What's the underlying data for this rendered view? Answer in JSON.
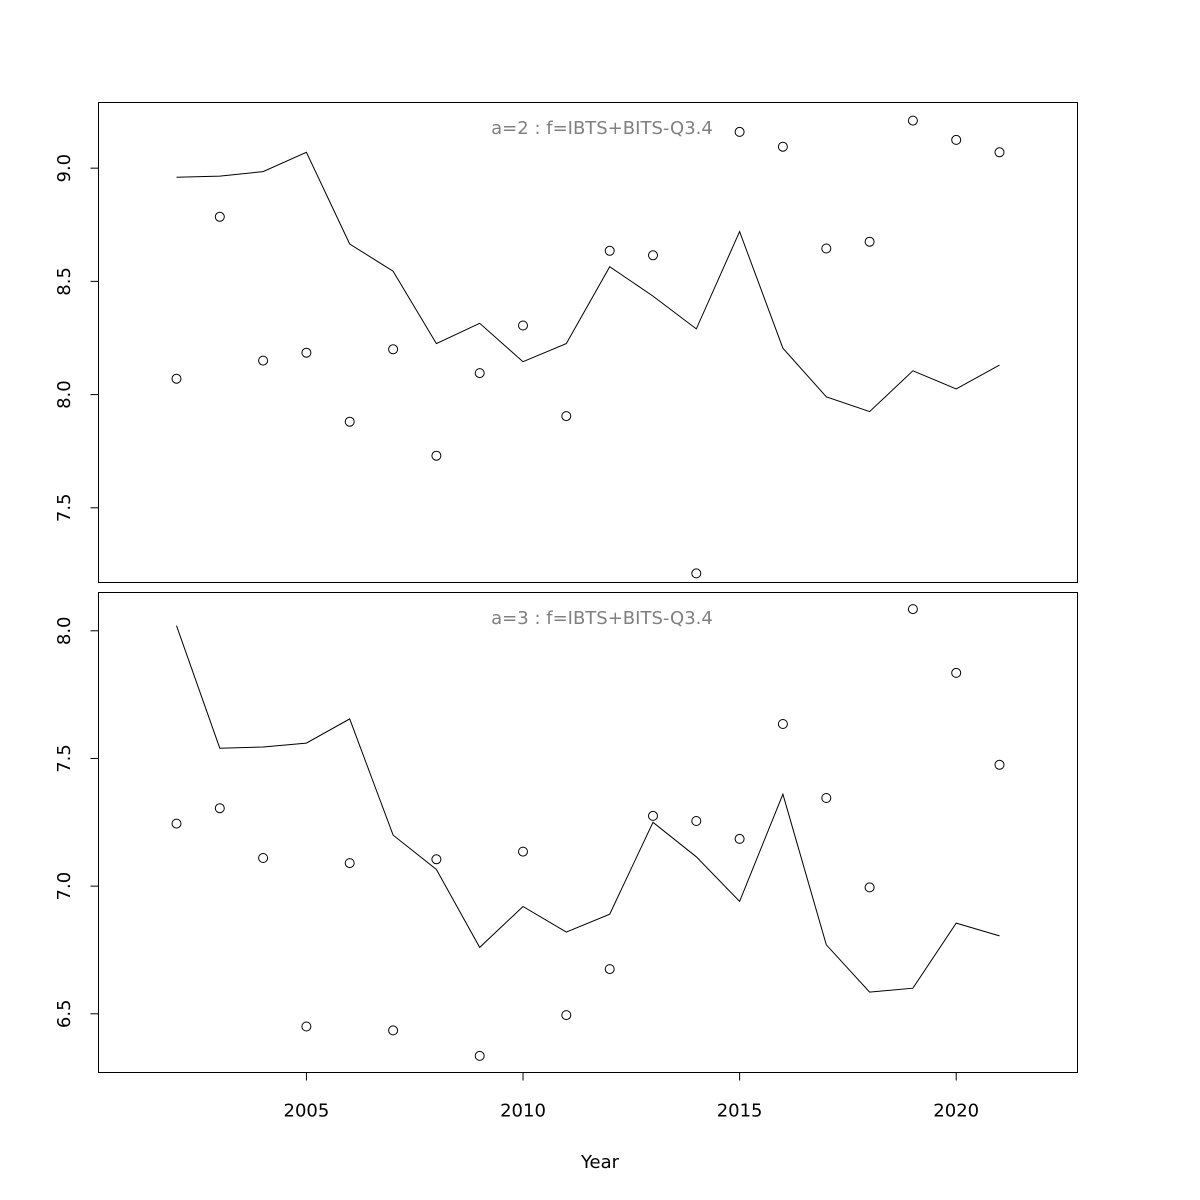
{
  "chart_data": [
    {
      "type": "line",
      "title": "a=2  :  f=IBTS+BITS-Q3.4",
      "xlabel": "Year",
      "ylabel": "",
      "xlim": [
        2000.2,
        2022.8
      ],
      "ylim": [
        7.17,
        9.29
      ],
      "yticks": [
        7.5,
        8.0,
        8.5,
        9.0
      ],
      "ytick_labels": [
        "7.5",
        "8.0",
        "8.5",
        "9.0"
      ],
      "series": [
        {
          "style": "line",
          "x": [
            2002,
            2003,
            2004,
            2005,
            2006,
            2007,
            2008,
            2009,
            2010,
            2011,
            2012,
            2013,
            2014,
            2015,
            2016,
            2017,
            2018,
            2019,
            2020,
            2021
          ],
          "values": [
            8.96,
            8.965,
            8.985,
            9.07,
            8.665,
            8.545,
            8.225,
            8.315,
            8.145,
            8.225,
            8.565,
            8.435,
            8.29,
            8.72,
            8.205,
            7.99,
            7.925,
            8.105,
            8.025,
            8.13
          ]
        },
        {
          "style": "points",
          "x": [
            2002,
            2003,
            2004,
            2005,
            2006,
            2007,
            2008,
            2009,
            2010,
            2011,
            2012,
            2013,
            2014,
            2015,
            2016,
            2017,
            2018,
            2019,
            2020,
            2021
          ],
          "values": [
            8.07,
            8.785,
            8.15,
            8.185,
            7.88,
            8.2,
            7.73,
            8.095,
            8.305,
            7.905,
            8.635,
            8.615,
            7.21,
            9.16,
            9.095,
            8.645,
            8.675,
            9.21,
            9.125,
            9.07
          ]
        }
      ]
    },
    {
      "type": "line",
      "title": "a=3  :  f=IBTS+BITS-Q3.4",
      "xlabel": "Year",
      "ylabel": "",
      "xlim": [
        2000.2,
        2022.8
      ],
      "ylim": [
        6.27,
        8.15
      ],
      "xticks": [
        2005,
        2010,
        2015,
        2020
      ],
      "xtick_labels": [
        "2005",
        "2010",
        "2015",
        "2020"
      ],
      "yticks": [
        6.5,
        7.0,
        7.5,
        8.0
      ],
      "ytick_labels": [
        "6.5",
        "7.0",
        "7.5",
        "8.0"
      ],
      "series": [
        {
          "style": "line",
          "x": [
            2002,
            2003,
            2004,
            2005,
            2006,
            2007,
            2008,
            2009,
            2010,
            2011,
            2012,
            2013,
            2014,
            2015,
            2016,
            2017,
            2018,
            2019,
            2020,
            2021
          ],
          "values": [
            8.02,
            7.54,
            7.545,
            7.56,
            7.655,
            7.2,
            7.065,
            6.76,
            6.92,
            6.82,
            6.89,
            7.25,
            7.115,
            6.94,
            7.36,
            6.77,
            6.585,
            6.6,
            6.855,
            6.805
          ]
        },
        {
          "style": "points",
          "x": [
            2002,
            2003,
            2004,
            2005,
            2006,
            2007,
            2008,
            2009,
            2010,
            2011,
            2012,
            2013,
            2014,
            2015,
            2016,
            2017,
            2018,
            2019,
            2020,
            2021
          ],
          "values": [
            7.245,
            7.305,
            7.11,
            6.45,
            7.09,
            6.435,
            7.105,
            6.335,
            7.135,
            6.495,
            6.675,
            7.275,
            7.255,
            7.185,
            7.635,
            7.345,
            6.995,
            8.085,
            7.835,
            7.475
          ]
        }
      ]
    }
  ]
}
